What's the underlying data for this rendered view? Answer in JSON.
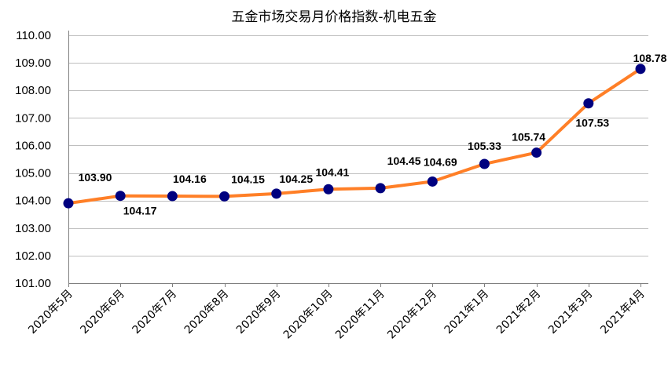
{
  "chart_data": {
    "type": "line",
    "title": "五金市场交易月价格指数-机电五金",
    "xlabel": "",
    "ylabel": "",
    "categories": [
      "2020年5月",
      "2020年6月",
      "2020年7月",
      "2020年8月",
      "2020年9月",
      "2020年10月",
      "2020年11月",
      "2020年12月",
      "2021年1月",
      "2021年2月",
      "2021年3月",
      "2021年4月"
    ],
    "y_tick_labels": [
      "110.00",
      "109.00",
      "108.00",
      "107.00",
      "106.00",
      "105.00",
      "104.00",
      "103.00",
      "102.00",
      "101.00"
    ],
    "ylim": [
      101,
      110
    ],
    "grid": true,
    "series": [
      {
        "values": [
          103.9,
          104.17,
          104.16,
          104.15,
          104.25,
          104.41,
          104.45,
          104.69,
          105.33,
          105.74,
          107.53,
          108.78
        ],
        "labels": [
          "103.90",
          "104.17",
          "104.16",
          "104.15",
          "104.25",
          "104.41",
          "104.45",
          "104.69",
          "105.33",
          "105.74",
          "107.53",
          "108.78"
        ],
        "line_color": "#ff7f27",
        "marker_color": "#00007f"
      }
    ]
  }
}
